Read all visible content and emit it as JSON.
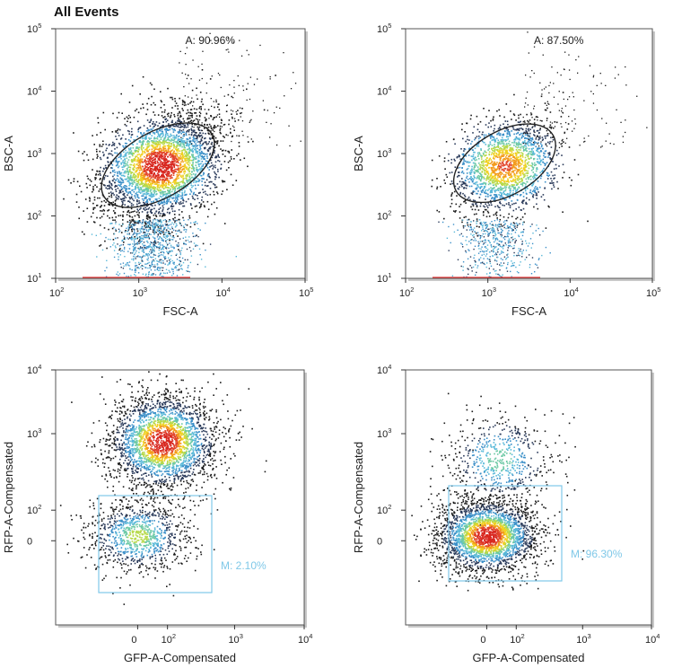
{
  "page_title": "All Events",
  "colors": {
    "gate_ellipse": "#222222",
    "gate_rect": "#7fc8e8",
    "gate_rect_text": "#7fc8e8",
    "axis": "#333333",
    "text": "#222222"
  },
  "chart_data": [
    {
      "type": "scatter",
      "title": "",
      "xlabel": "FSC-A",
      "ylabel": "BSC-A",
      "xscale": "log",
      "yscale": "log",
      "xlim": [
        100,
        100000
      ],
      "ylim": [
        10,
        100000
      ],
      "xticks": [
        {
          "value": 100,
          "base": "10",
          "exp": "2"
        },
        {
          "value": 1000,
          "base": "10",
          "exp": "3"
        },
        {
          "value": 10000,
          "base": "10",
          "exp": "4"
        },
        {
          "value": 100000,
          "base": "10",
          "exp": "5"
        }
      ],
      "yticks": [
        {
          "value": 10,
          "base": "10",
          "exp": "1"
        },
        {
          "value": 100,
          "base": "10",
          "exp": "2"
        },
        {
          "value": 1000,
          "base": "10",
          "exp": "3"
        },
        {
          "value": 10000,
          "base": "10",
          "exp": "4"
        },
        {
          "value": 100000,
          "base": "10",
          "exp": "5"
        }
      ],
      "population": {
        "center_x": 1800,
        "center_y": 650,
        "spread": 1.0,
        "density": 1.0
      },
      "gate": {
        "type": "ellipse",
        "label": "A: 90.96%",
        "center_x": 1700,
        "center_y": 650,
        "x_decades": 0.75,
        "y_decades": 0.62,
        "angle_deg": -30
      }
    },
    {
      "type": "scatter",
      "title": "",
      "xlabel": "FSC-A",
      "ylabel": "BSC-A",
      "xscale": "log",
      "yscale": "log",
      "xlim": [
        100,
        100000
      ],
      "ylim": [
        10,
        100000
      ],
      "xticks": [
        {
          "value": 100,
          "base": "10",
          "exp": "2"
        },
        {
          "value": 1000,
          "base": "10",
          "exp": "3"
        },
        {
          "value": 10000,
          "base": "10",
          "exp": "4"
        },
        {
          "value": 100000,
          "base": "10",
          "exp": "5"
        }
      ],
      "yticks": [
        {
          "value": 10,
          "base": "10",
          "exp": "1"
        },
        {
          "value": 100,
          "base": "10",
          "exp": "2"
        },
        {
          "value": 1000,
          "base": "10",
          "exp": "3"
        },
        {
          "value": 10000,
          "base": "10",
          "exp": "4"
        },
        {
          "value": 100000,
          "base": "10",
          "exp": "5"
        }
      ],
      "population": {
        "center_x": 1600,
        "center_y": 650,
        "spread": 0.8,
        "density": 0.45
      },
      "gate": {
        "type": "ellipse",
        "label": "A: 87.50%",
        "center_x": 1600,
        "center_y": 700,
        "x_decades": 0.68,
        "y_decades": 0.6,
        "angle_deg": -30
      }
    },
    {
      "type": "scatter",
      "title": "",
      "xlabel": "GFP-A-Compensated",
      "ylabel": "RFP-A-Compensated",
      "xscale": "biexponential",
      "yscale": "biexponential",
      "xticks": [
        {
          "value": 0,
          "base": "0",
          "exp": ""
        },
        {
          "value": 100,
          "base": "10",
          "exp": "2"
        },
        {
          "value": 1000,
          "base": "10",
          "exp": "3"
        },
        {
          "value": 10000,
          "base": "10",
          "exp": "4"
        }
      ],
      "yticks": [
        {
          "value": 0,
          "base": "0",
          "exp": ""
        },
        {
          "value": 100,
          "base": "10",
          "exp": "2"
        },
        {
          "value": 1000,
          "base": "10",
          "exp": "3"
        },
        {
          "value": 10000,
          "base": "10",
          "exp": "4"
        }
      ],
      "populations": [
        {
          "name": "RFP-positive",
          "center_x": 0.1,
          "center_y": 0.72,
          "density": 1.0
        },
        {
          "name": "RFP-negative",
          "center_x": 0.0,
          "center_y": 0.35,
          "density": 0.3
        }
      ],
      "gate": {
        "type": "rectangle",
        "label": "M: 2.10%"
      }
    },
    {
      "type": "scatter",
      "title": "",
      "xlabel": "GFP-A-Compensated",
      "ylabel": "RFP-A-Compensated",
      "xscale": "biexponential",
      "yscale": "biexponential",
      "xticks": [
        {
          "value": 0,
          "base": "0",
          "exp": ""
        },
        {
          "value": 100,
          "base": "10",
          "exp": "2"
        },
        {
          "value": 1000,
          "base": "10",
          "exp": "3"
        },
        {
          "value": 10000,
          "base": "10",
          "exp": "4"
        }
      ],
      "yticks": [
        {
          "value": 0,
          "base": "0",
          "exp": ""
        },
        {
          "value": 100,
          "base": "10",
          "exp": "2"
        },
        {
          "value": 1000,
          "base": "10",
          "exp": "3"
        },
        {
          "value": 10000,
          "base": "10",
          "exp": "4"
        }
      ],
      "populations": [
        {
          "name": "RFP-positive",
          "center_x": 0.05,
          "center_y": 0.65,
          "density": 0.15
        },
        {
          "name": "RFP-negative",
          "center_x": 0.0,
          "center_y": 0.35,
          "density": 1.0
        }
      ],
      "gate": {
        "type": "rectangle",
        "label": "M: 96.30%"
      }
    }
  ]
}
